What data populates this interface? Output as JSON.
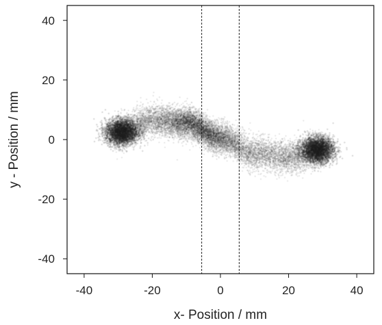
{
  "chart_data": {
    "type": "scatter",
    "title": "",
    "xlabel": "x- Position / mm",
    "ylabel": "y - Position / mm",
    "xlim": [
      -45,
      45
    ],
    "ylim": [
      -45,
      45
    ],
    "x_ticks": [
      -40,
      -20,
      0,
      20,
      40
    ],
    "y_ticks": [
      -40,
      -20,
      0,
      20,
      40
    ],
    "x_tick_labels": [
      "-40",
      "-20",
      "0",
      "20",
      "40"
    ],
    "y_tick_labels": [
      "-40",
      "-20",
      "0",
      "20",
      "40"
    ],
    "grid": false,
    "vertical_reference_lines": [
      -5.5,
      5.5
    ],
    "point_color": "#1a1a1a",
    "density_description_points": [
      {
        "x": -30,
        "y": 2.5
      },
      {
        "x": -20,
        "y": 6.5
      },
      {
        "x": -10,
        "y": 5.5
      },
      {
        "x": 0,
        "y": 0.5
      },
      {
        "x": 10,
        "y": -4.5
      },
      {
        "x": 20,
        "y": -6
      },
      {
        "x": 29,
        "y": -3.5
      }
    ]
  }
}
